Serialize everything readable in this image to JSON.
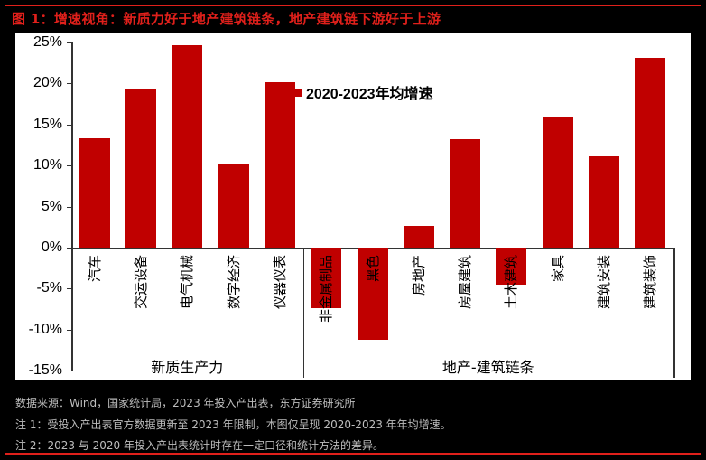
{
  "title": "图 1：增速视角：新质力好于地产建筑链条，地产建筑链下游好于上游",
  "colors": {
    "accent": "#e0201b",
    "bar": "#c00000",
    "background": "#000000",
    "plot_bg": "#ffffff",
    "footer_text": "#bdbdbd"
  },
  "legend": {
    "label": "2020-2023年均增速"
  },
  "y_axis": {
    "ticks": [
      "25%",
      "20%",
      "15%",
      "10%",
      "5%",
      "0%",
      "-5%",
      "-10%",
      "-15%"
    ]
  },
  "groups": [
    {
      "label": "新质生产力"
    },
    {
      "label": "地产-建筑链条"
    }
  ],
  "categories": [
    {
      "label": "汽车"
    },
    {
      "label": "交运设备"
    },
    {
      "label": "电气机械"
    },
    {
      "label": "数字经济"
    },
    {
      "label": "仪器仪表"
    },
    {
      "label": "非金属制品"
    },
    {
      "label": "黑色"
    },
    {
      "label": "房地产"
    },
    {
      "label": "房屋建筑"
    },
    {
      "label": "土木建筑"
    },
    {
      "label": "家具"
    },
    {
      "label": "建筑安装"
    },
    {
      "label": "建筑装饰"
    }
  ],
  "footer": {
    "source": "数据来源：Wind，国家统计局，2023 年投入产出表，东方证券研究所",
    "note1": "注 1：受投入产出表官方数据更新至 2023 年限制，本图仅呈现 2020-2023 年年均增速。",
    "note2": "注 2：2023 与 2020 年投入产出表统计时存在一定口径和统计方法的差异。"
  },
  "chart_data": {
    "type": "bar",
    "title": "2020-2023年均增速",
    "categories": [
      "汽车",
      "交运设备",
      "电气机械",
      "数字经济",
      "仪器仪表",
      "非金属制品",
      "黑色",
      "房地产",
      "房屋建筑",
      "土木建筑",
      "家具",
      "建筑安装",
      "建筑装饰"
    ],
    "series": [
      {
        "name": "2020-2023年均增速",
        "values": [
          13.3,
          19.3,
          24.7,
          10.1,
          20.2,
          -7.4,
          -11.3,
          2.6,
          13.2,
          -4.5,
          15.9,
          11.1,
          23.1
        ]
      }
    ],
    "category_groups": [
      {
        "name": "新质生产力",
        "members": [
          "汽车",
          "交运设备",
          "电气机械",
          "数字经济",
          "仪器仪表"
        ]
      },
      {
        "name": "地产-建筑链条",
        "members": [
          "非金属制品",
          "黑色",
          "房地产",
          "房屋建筑",
          "土木建筑",
          "家具",
          "建筑安装",
          "建筑装饰"
        ]
      }
    ],
    "xlabel": "",
    "ylabel": "",
    "ylim": [
      -15,
      25
    ],
    "ytick_step": 5,
    "y_format": "percent",
    "grid": false,
    "legend_position": "top-center"
  }
}
